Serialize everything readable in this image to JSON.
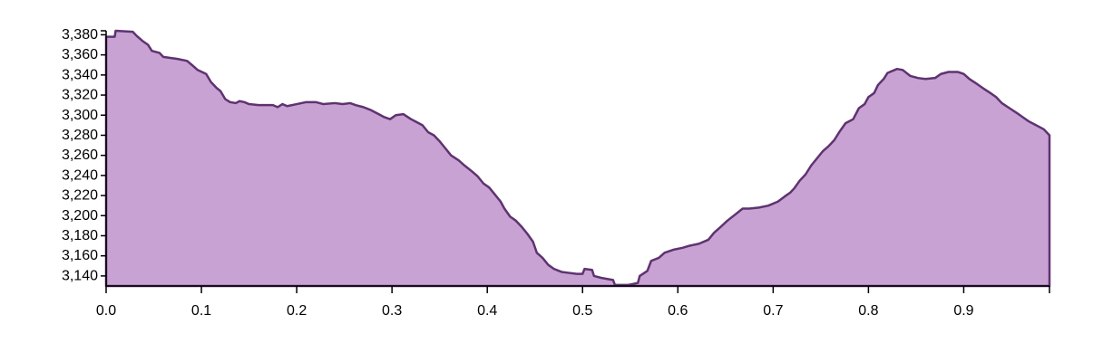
{
  "chart_data": {
    "type": "area",
    "title": "",
    "xlabel": "",
    "ylabel": "",
    "xlim": [
      0,
      0.99
    ],
    "ylim": [
      3130,
      3384
    ],
    "x_ticks": [
      "0.0",
      "0.1",
      "0.2",
      "0.3",
      "0.4",
      "0.5",
      "0.6",
      "0.7",
      "0.8",
      "0.9"
    ],
    "x_tick_values": [
      0,
      0.1,
      0.2,
      0.3,
      0.4,
      0.5,
      0.6,
      0.7,
      0.8,
      0.9
    ],
    "y_ticks": [
      "3,140",
      "3,160",
      "3,180",
      "3,200",
      "3,220",
      "3,240",
      "3,260",
      "3,280",
      "3,300",
      "3,320",
      "3,340",
      "3,360",
      "3,380"
    ],
    "y_tick_values": [
      3140,
      3160,
      3180,
      3200,
      3220,
      3240,
      3260,
      3280,
      3300,
      3320,
      3340,
      3360,
      3380
    ],
    "grid": false,
    "legend": "none",
    "colors": {
      "fill": "#c8a2d2",
      "stroke": "#5e3370"
    },
    "series": [
      {
        "points": [
          [
            0.0,
            3378
          ],
          [
            0.009,
            3378
          ],
          [
            0.01,
            3384
          ],
          [
            0.028,
            3383
          ],
          [
            0.032,
            3379
          ],
          [
            0.038,
            3374
          ],
          [
            0.044,
            3370
          ],
          [
            0.048,
            3364
          ],
          [
            0.056,
            3362
          ],
          [
            0.06,
            3358
          ],
          [
            0.075,
            3356
          ],
          [
            0.085,
            3354
          ],
          [
            0.09,
            3350
          ],
          [
            0.096,
            3345
          ],
          [
            0.105,
            3341
          ],
          [
            0.11,
            3333
          ],
          [
            0.116,
            3327
          ],
          [
            0.12,
            3324
          ],
          [
            0.125,
            3316
          ],
          [
            0.13,
            3313
          ],
          [
            0.136,
            3312
          ],
          [
            0.14,
            3314
          ],
          [
            0.145,
            3313
          ],
          [
            0.15,
            3311
          ],
          [
            0.16,
            3310
          ],
          [
            0.175,
            3310
          ],
          [
            0.18,
            3308
          ],
          [
            0.185,
            3311
          ],
          [
            0.19,
            3309
          ],
          [
            0.2,
            3311
          ],
          [
            0.21,
            3313
          ],
          [
            0.22,
            3313
          ],
          [
            0.228,
            3311
          ],
          [
            0.24,
            3312
          ],
          [
            0.248,
            3311
          ],
          [
            0.256,
            3312
          ],
          [
            0.262,
            3310
          ],
          [
            0.27,
            3308
          ],
          [
            0.278,
            3305
          ],
          [
            0.284,
            3302
          ],
          [
            0.292,
            3298
          ],
          [
            0.298,
            3296
          ],
          [
            0.304,
            3300
          ],
          [
            0.312,
            3301
          ],
          [
            0.32,
            3296
          ],
          [
            0.326,
            3293
          ],
          [
            0.332,
            3290
          ],
          [
            0.338,
            3283
          ],
          [
            0.344,
            3280
          ],
          [
            0.35,
            3274
          ],
          [
            0.356,
            3267
          ],
          [
            0.362,
            3260
          ],
          [
            0.37,
            3255
          ],
          [
            0.376,
            3250
          ],
          [
            0.384,
            3244
          ],
          [
            0.39,
            3239
          ],
          [
            0.396,
            3232
          ],
          [
            0.402,
            3228
          ],
          [
            0.408,
            3221
          ],
          [
            0.414,
            3214
          ],
          [
            0.418,
            3207
          ],
          [
            0.424,
            3199
          ],
          [
            0.43,
            3195
          ],
          [
            0.436,
            3189
          ],
          [
            0.442,
            3182
          ],
          [
            0.448,
            3174
          ],
          [
            0.452,
            3163
          ],
          [
            0.458,
            3158
          ],
          [
            0.464,
            3151
          ],
          [
            0.47,
            3147
          ],
          [
            0.478,
            3144
          ],
          [
            0.486,
            3143
          ],
          [
            0.494,
            3142
          ],
          [
            0.5,
            3142
          ],
          [
            0.502,
            3147
          ],
          [
            0.51,
            3146
          ],
          [
            0.512,
            3140
          ],
          [
            0.52,
            3138
          ],
          [
            0.526,
            3137
          ],
          [
            0.532,
            3136
          ],
          [
            0.534,
            3131
          ],
          [
            0.548,
            3131
          ],
          [
            0.558,
            3133
          ],
          [
            0.56,
            3140
          ],
          [
            0.568,
            3145
          ],
          [
            0.572,
            3155
          ],
          [
            0.58,
            3158
          ],
          [
            0.586,
            3163
          ],
          [
            0.595,
            3166
          ],
          [
            0.605,
            3168
          ],
          [
            0.612,
            3170
          ],
          [
            0.622,
            3172
          ],
          [
            0.632,
            3176
          ],
          [
            0.638,
            3183
          ],
          [
            0.644,
            3188
          ],
          [
            0.652,
            3195
          ],
          [
            0.66,
            3201
          ],
          [
            0.668,
            3207
          ],
          [
            0.675,
            3207
          ],
          [
            0.685,
            3208
          ],
          [
            0.695,
            3210
          ],
          [
            0.705,
            3214
          ],
          [
            0.712,
            3219
          ],
          [
            0.718,
            3223
          ],
          [
            0.722,
            3227
          ],
          [
            0.728,
            3235
          ],
          [
            0.734,
            3241
          ],
          [
            0.74,
            3250
          ],
          [
            0.746,
            3257
          ],
          [
            0.752,
            3264
          ],
          [
            0.758,
            3269
          ],
          [
            0.764,
            3275
          ],
          [
            0.77,
            3284
          ],
          [
            0.776,
            3292
          ],
          [
            0.784,
            3296
          ],
          [
            0.79,
            3307
          ],
          [
            0.796,
            3311
          ],
          [
            0.8,
            3318
          ],
          [
            0.806,
            3322
          ],
          [
            0.81,
            3330
          ],
          [
            0.816,
            3336
          ],
          [
            0.82,
            3342
          ],
          [
            0.83,
            3346
          ],
          [
            0.836,
            3345
          ],
          [
            0.844,
            3339
          ],
          [
            0.852,
            3337
          ],
          [
            0.86,
            3336
          ],
          [
            0.87,
            3337
          ],
          [
            0.876,
            3341
          ],
          [
            0.884,
            3343
          ],
          [
            0.894,
            3343
          ],
          [
            0.9,
            3341
          ],
          [
            0.906,
            3336
          ],
          [
            0.914,
            3331
          ],
          [
            0.92,
            3327
          ],
          [
            0.928,
            3322
          ],
          [
            0.934,
            3318
          ],
          [
            0.94,
            3312
          ],
          [
            0.948,
            3307
          ],
          [
            0.956,
            3302
          ],
          [
            0.962,
            3298
          ],
          [
            0.968,
            3294
          ],
          [
            0.976,
            3290
          ],
          [
            0.984,
            3286
          ],
          [
            0.99,
            3280
          ]
        ]
      }
    ]
  }
}
